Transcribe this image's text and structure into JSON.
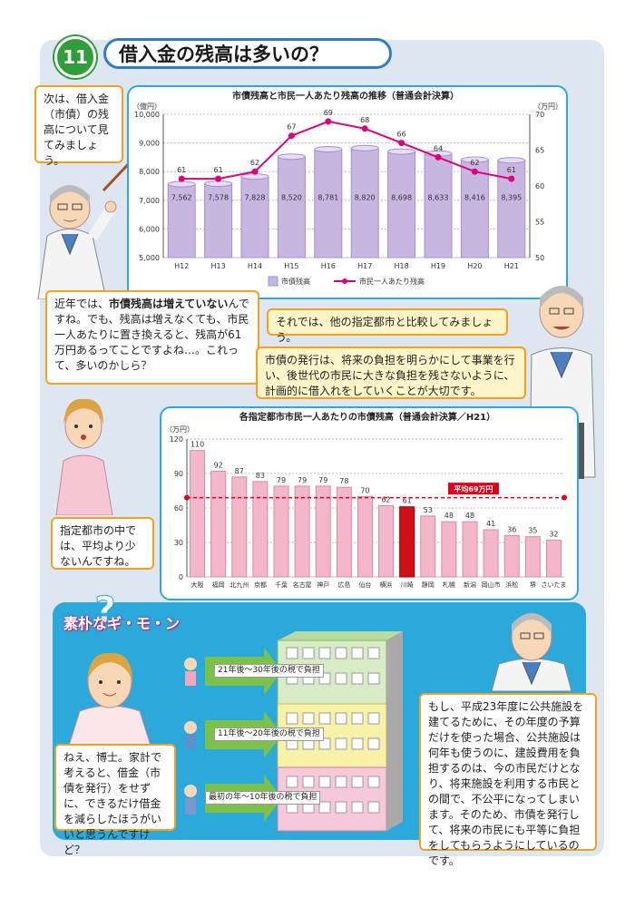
{
  "header": {
    "number": "11",
    "title": "借入金の残高は多いの？"
  },
  "bubbles": {
    "intro": "次は、借入金（市債）の残高について見てみましょう。",
    "recent_1": "近年では、",
    "recent_bold": "市債残高は増えていない",
    "recent_2": "んですね。でも、残高は増えなくても、市民一人あたりに置き換えると、残高が61万円あるってことですよね…。これって、多いのかしら？",
    "compare": "それでは、他の指定都市と比較してみましょう。",
    "plan": "市債の発行は、将来の負担を明らかにして事業を行い、後世代の市民に大きな負担を残さないように、計画的に借入れをしていくことが大切です。",
    "less": "指定都市の中では、平均より少ないんですね。",
    "question": "ねえ、博士。家計で考えると、借金（市債を発行）をせずに、できるだけ借金を減らしたほうがいいと思うんですけど？",
    "answer": "もし、平成23年度に公共施設を建てるために、その年度の予算だけを使った場合、公共施設は何年も使うのに、建設費用を負担するのは、今の市民だけとなり、将来施設を利用する市民との間で、不公平になってしまいます。そのため、市債を発行して、将来の市民にも平等に負担をしてもらうようにしているのです。"
  },
  "soboku": "素朴なギ・モ・ン",
  "tax_labels": [
    "21年後～30年後の税で負担",
    "11年後～20年後の税で負担",
    "最初の年～10年後の税で負担"
  ],
  "colors": {
    "bar": "#c7b6e0",
    "line": "#e0007a",
    "pink_bar": "#f3b7c9",
    "highlight": "#d10f1a",
    "avg": "#e0001a"
  },
  "chart_data": [
    {
      "type": "bar",
      "title": "市債残高と市民一人あたり残高の推移（普通会計決算）",
      "categories": [
        "H12",
        "H13",
        "H14",
        "H15",
        "H16",
        "H17",
        "H18",
        "H19",
        "H20",
        "H21"
      ],
      "series": [
        {
          "name": "市債残高",
          "values": [
            7562,
            7578,
            7828,
            8520,
            8781,
            8820,
            8698,
            8633,
            8416,
            8395
          ]
        },
        {
          "name": "市民一人あたり残高",
          "values": [
            61,
            61,
            62,
            67,
            69,
            68,
            66,
            64,
            62,
            61
          ]
        }
      ],
      "left_unit": "（億円）",
      "right_unit": "（万円）",
      "ylim": [
        5000,
        10000
      ],
      "yticks": [
        "5,000",
        "6,000",
        "7,000",
        "8,000",
        "9,000",
        "10,000"
      ],
      "y2lim": [
        50,
        70
      ],
      "y2ticks": [
        "50",
        "55",
        "60",
        "65",
        "70"
      ],
      "legend": "bottom"
    },
    {
      "type": "bar",
      "title": "各指定都市市民一人あたりの市債残高（普通会計決算／H21）",
      "unit": "（万円）",
      "categories": [
        "大阪",
        "福岡",
        "北九州",
        "京都",
        "千葉",
        "名古屋",
        "神戸",
        "広島",
        "仙台",
        "横浜",
        "川崎",
        "静岡",
        "札幌",
        "新潟",
        "岡山市",
        "浜松",
        "堺",
        "さいたま"
      ],
      "values": [
        110,
        92,
        87,
        83,
        79,
        79,
        79,
        78,
        70,
        62,
        61,
        53,
        48,
        48,
        41,
        36,
        35,
        32
      ],
      "highlight": "川崎",
      "average": 69,
      "average_label": "平均69万円",
      "ylim": [
        0,
        120
      ],
      "yticks": [
        "0",
        "30",
        "60",
        "90",
        "120"
      ]
    }
  ]
}
